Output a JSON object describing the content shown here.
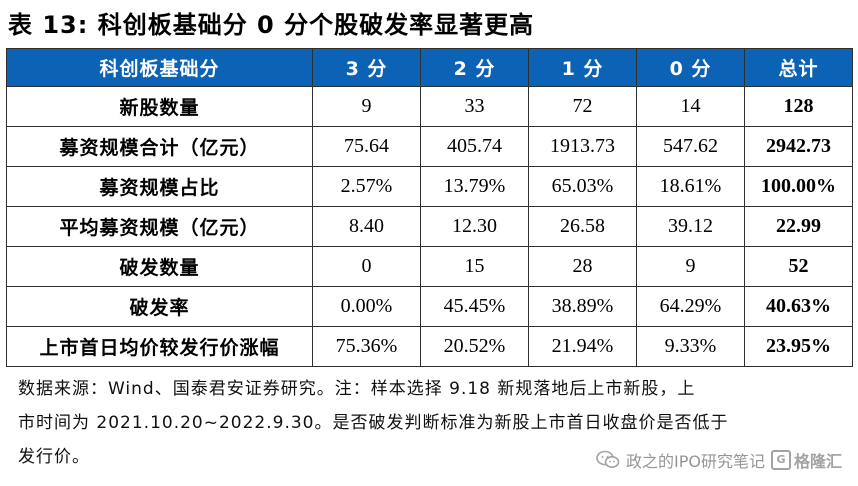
{
  "title": "表 13: 科创板基础分 0 分个股破发率显著更高",
  "table": {
    "headers": [
      "科创板基础分",
      "3 分",
      "2 分",
      "1 分",
      "0 分",
      "总计"
    ],
    "rows": [
      {
        "label": "新股数量",
        "values": [
          "9",
          "33",
          "72",
          "14"
        ],
        "total": "128"
      },
      {
        "label": "募资规模合计（亿元）",
        "values": [
          "75.64",
          "405.74",
          "1913.73",
          "547.62"
        ],
        "total": "2942.73"
      },
      {
        "label": "募资规模占比",
        "values": [
          "2.57%",
          "13.79%",
          "65.03%",
          "18.61%"
        ],
        "total": "100.00%"
      },
      {
        "label": "平均募资规模（亿元）",
        "values": [
          "8.40",
          "12.30",
          "26.58",
          "39.12"
        ],
        "total": "22.99"
      },
      {
        "label": "破发数量",
        "values": [
          "0",
          "15",
          "28",
          "9"
        ],
        "total": "52"
      },
      {
        "label": "破发率",
        "values": [
          "0.00%",
          "45.45%",
          "38.89%",
          "64.29%"
        ],
        "total": "40.63%"
      },
      {
        "label": "上市首日均价较发行价涨幅",
        "values": [
          "75.36%",
          "20.52%",
          "21.94%",
          "9.33%"
        ],
        "total": "23.95%"
      }
    ]
  },
  "source": {
    "line1": "数据来源：Wind、国泰君安证券研究。注：样本选择 9.18 新规落地后上市新股，上",
    "line2": "市时间为 2021.10.20~2022.9.30。是否破发判断标准为新股上市首日收盘价是否低于",
    "line3": "发行价。"
  },
  "watermark": {
    "text": "政之的IPO研究笔记",
    "logo_text": "格隆汇",
    "icon": "wechat-icon"
  }
}
